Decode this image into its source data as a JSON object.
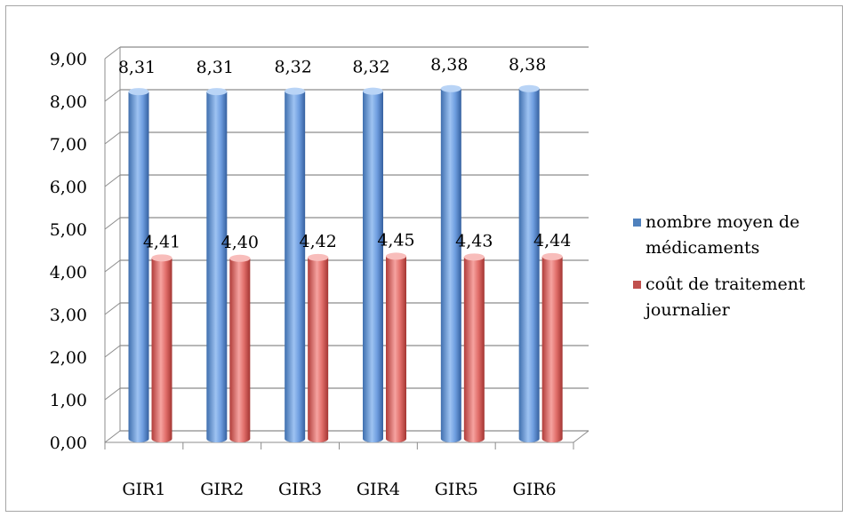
{
  "chart_data": {
    "type": "bar",
    "categories": [
      "GIR1",
      "GIR2",
      "GIR3",
      "GIR4",
      "GIR5",
      "GIR6"
    ],
    "series": [
      {
        "name": "nombre moyen de médicaments",
        "values": [
          8.31,
          8.31,
          8.32,
          8.32,
          8.38,
          8.38
        ],
        "color": "#4f81bd",
        "labels": [
          "8,31",
          "8,31",
          "8,32",
          "8,32",
          "8,38",
          "8,38"
        ]
      },
      {
        "name": "coût de traitement journalier",
        "values": [
          4.41,
          4.4,
          4.42,
          4.45,
          4.43,
          4.44
        ],
        "color": "#c0504d",
        "labels": [
          "4,41",
          "4,40",
          "4,42",
          "4,45",
          "4,43",
          "4,44"
        ]
      }
    ],
    "ylim": [
      0,
      9
    ],
    "yticks": [
      "0,00",
      "1,00",
      "2,00",
      "3,00",
      "4,00",
      "5,00",
      "6,00",
      "7,00",
      "8,00",
      "9,00"
    ],
    "grid": true,
    "legend_position": "right",
    "style": "3d-cylinder"
  }
}
